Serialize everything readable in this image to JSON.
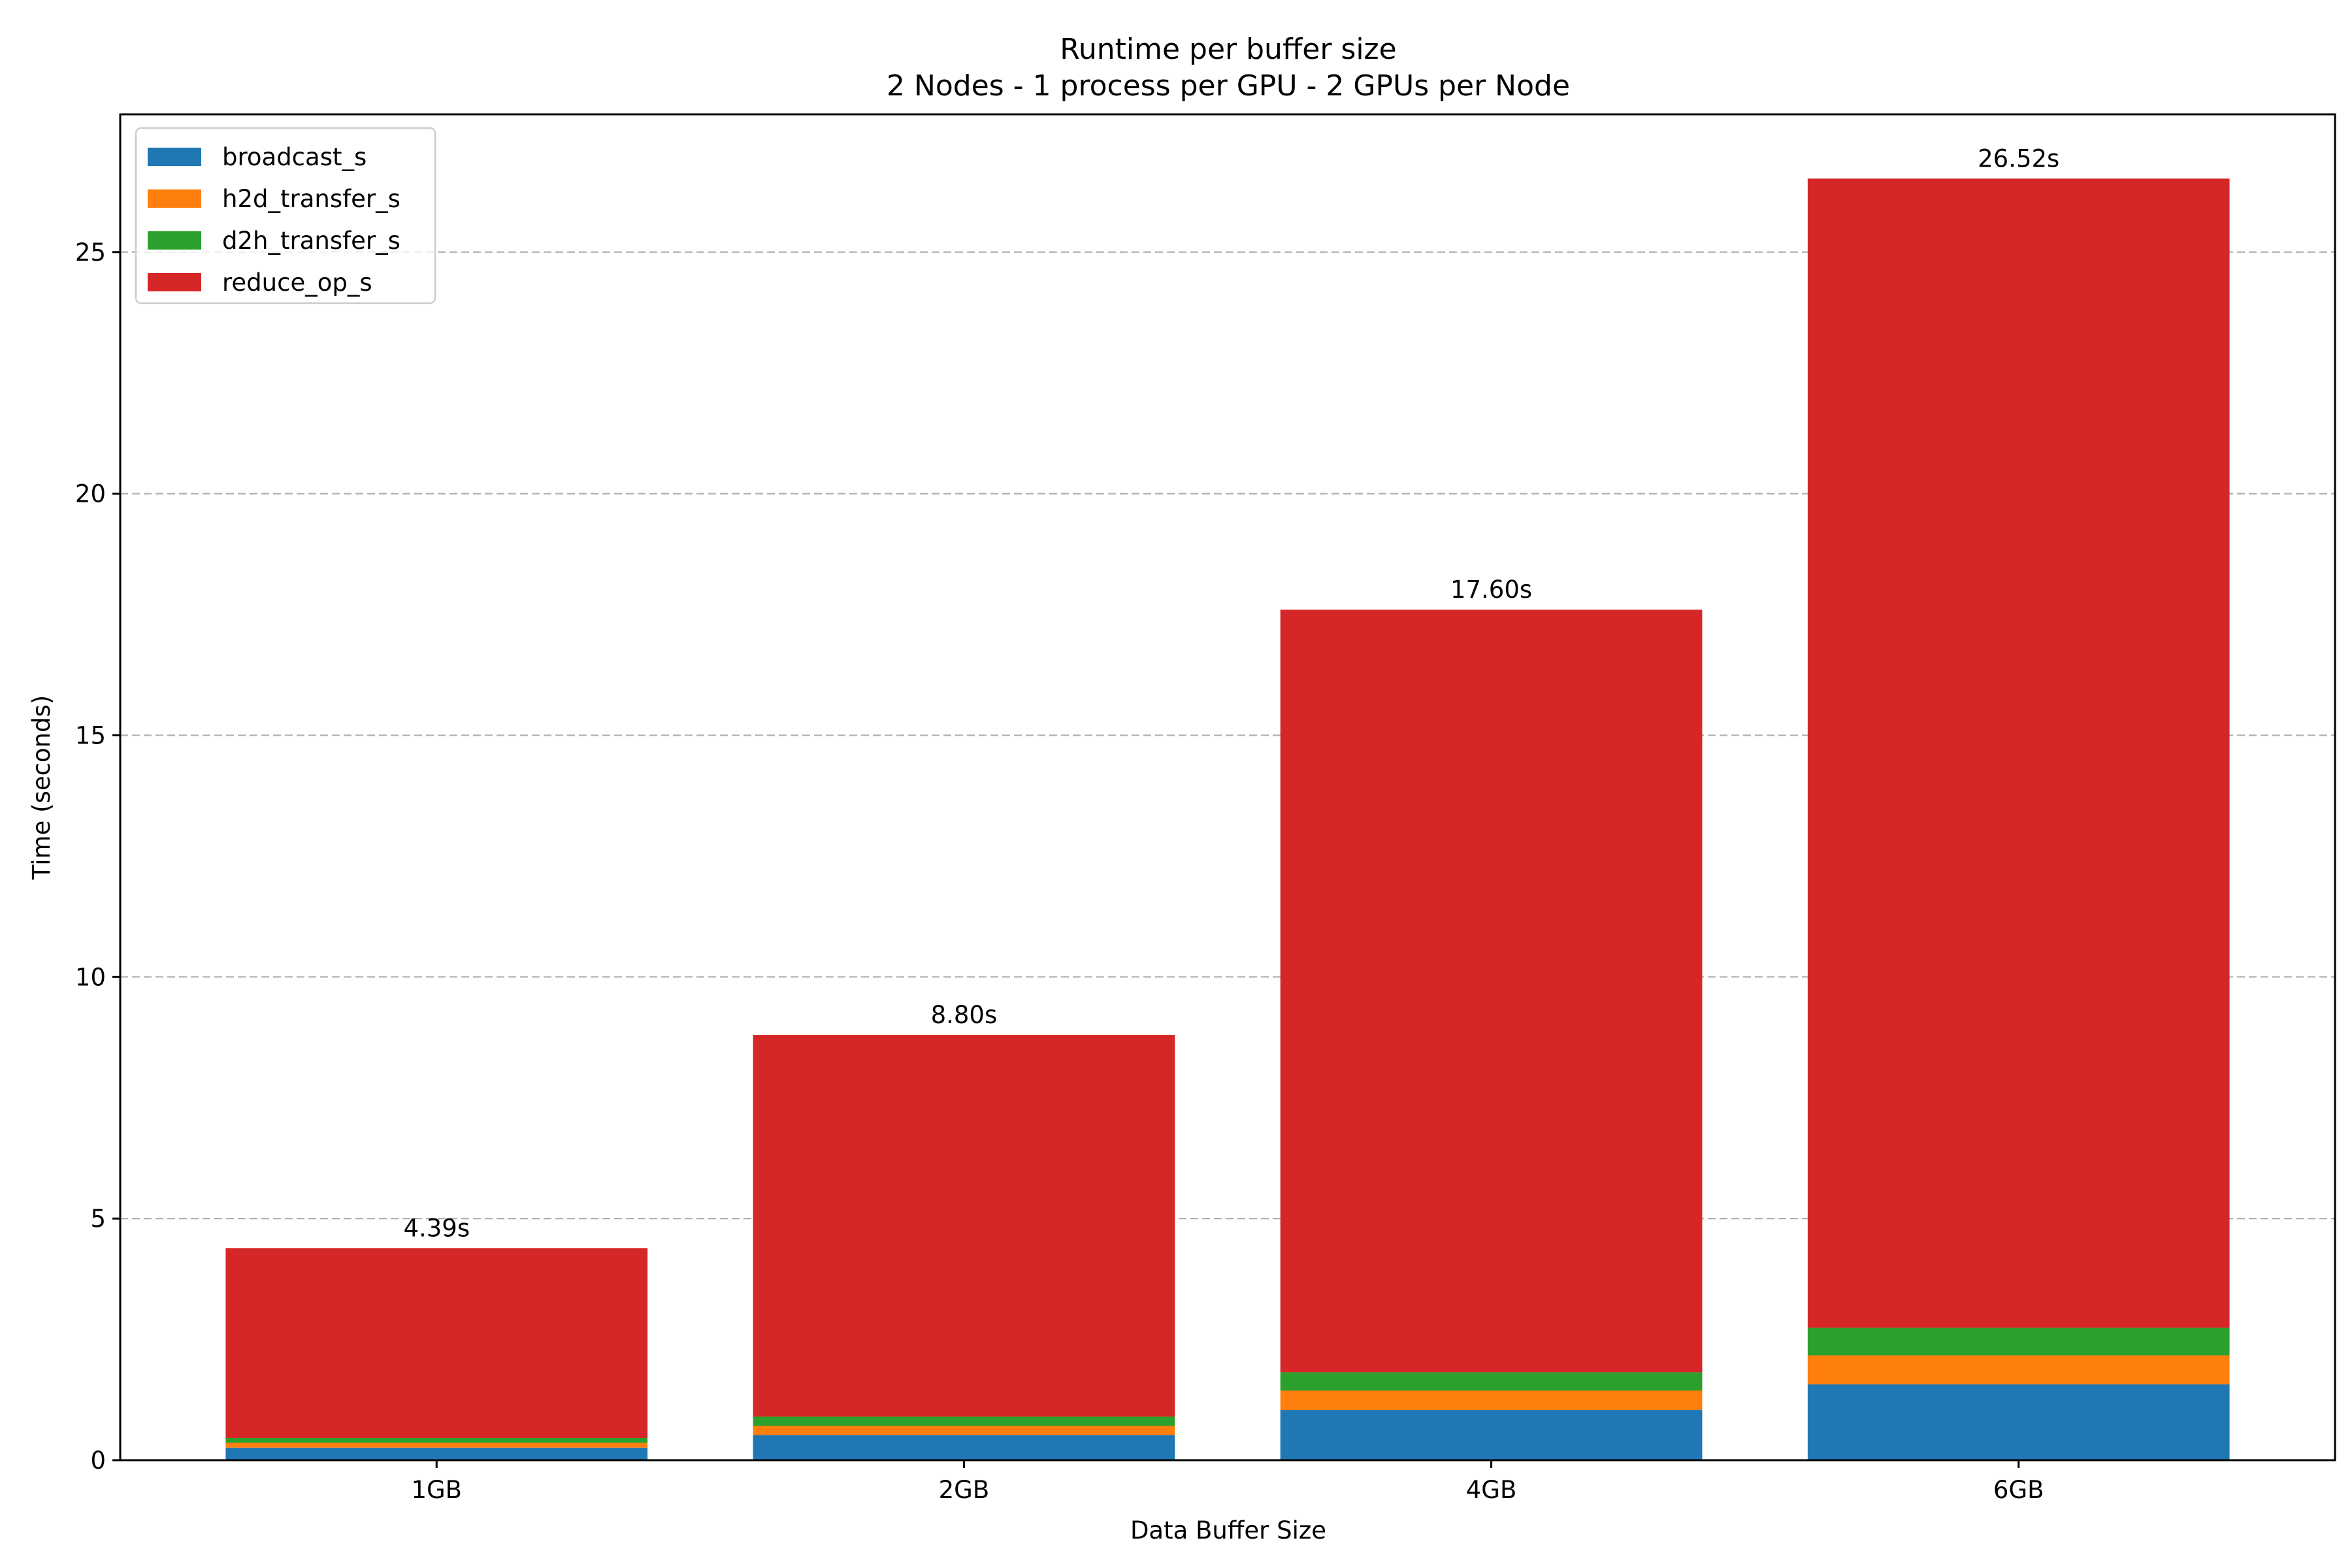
{
  "chart_data": {
    "type": "bar",
    "stacked": true,
    "title": "Runtime per buffer size",
    "subtitle": "2 Nodes - 1 process per GPU - 2 GPUs per Node",
    "xlabel": "Data Buffer Size",
    "ylabel": "Time (seconds)",
    "categories": [
      "1GB",
      "2GB",
      "4GB",
      "6GB"
    ],
    "ylim": [
      0,
      27.85
    ],
    "yticks": [
      0,
      5,
      10,
      15,
      20,
      25
    ],
    "grid": "y-dashed",
    "legend_position": "top-left",
    "series": [
      {
        "name": "broadcast_s",
        "color": "#1f77b4",
        "values": [
          0.26,
          0.52,
          1.04,
          1.57
        ]
      },
      {
        "name": "h2d_transfer_s",
        "color": "#ff7f0e",
        "values": [
          0.1,
          0.19,
          0.4,
          0.6
        ]
      },
      {
        "name": "d2h_transfer_s",
        "color": "#2ca02c",
        "values": [
          0.1,
          0.19,
          0.38,
          0.57
        ]
      },
      {
        "name": "reduce_op_s",
        "color": "#d62728",
        "values": [
          3.93,
          7.9,
          15.78,
          23.78
        ]
      }
    ],
    "totals": [
      "4.39s",
      "8.80s",
      "17.60s",
      "26.52s"
    ]
  }
}
